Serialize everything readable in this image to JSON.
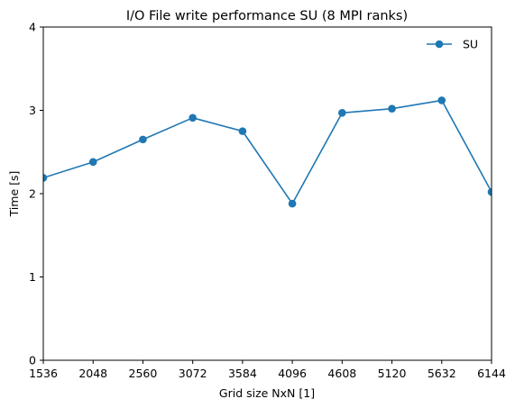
{
  "chart_data": {
    "type": "line",
    "title": "I/O File write performance SU (8 MPI ranks)",
    "xlabel": "Grid size NxN [1]",
    "ylabel": "Time [s]",
    "xlim": [
      1536,
      6144
    ],
    "ylim": [
      0,
      4
    ],
    "xticks": [
      1536,
      2048,
      2560,
      3072,
      3584,
      4096,
      4608,
      5120,
      5632,
      6144
    ],
    "yticks": [
      0,
      1,
      2,
      3,
      4
    ],
    "grid": false,
    "legend_position": "top-right",
    "series": [
      {
        "name": "SU",
        "color": "#1f77b4",
        "marker": "circle",
        "x": [
          1536,
          2048,
          2560,
          3072,
          3584,
          4096,
          4608,
          5120,
          5632,
          6144
        ],
        "y": [
          2.19,
          2.38,
          2.65,
          2.91,
          2.75,
          1.88,
          2.97,
          3.02,
          3.12,
          2.02
        ]
      }
    ]
  }
}
